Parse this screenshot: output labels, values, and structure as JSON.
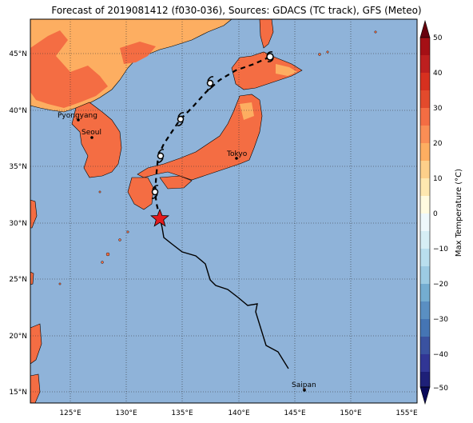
{
  "title": "Forecast of 2019081412 (f030-036), Sources: GDACS (TC track), GFS (Meteo)",
  "colorbar": {
    "label": "Max Temperature (°C)",
    "ticks": [
      "50",
      "40",
      "30",
      "20",
      "10",
      "0",
      "−10",
      "−20",
      "−30",
      "−40",
      "−50"
    ],
    "colors": [
      "#7f0000",
      "#a50f15",
      "#d7301f",
      "#f46d43",
      "#fdae61",
      "#fee090",
      "#ffffbf",
      "#e0f3f8",
      "#abd9e9",
      "#74add1",
      "#4575b4",
      "#313695",
      "#1a1a80",
      "#0a0a5a"
    ]
  },
  "axes": {
    "lon_ticks": [
      "125°E",
      "130°E",
      "135°E",
      "140°E",
      "145°E",
      "150°E",
      "155°E"
    ],
    "lat_ticks": [
      "45°N",
      "40°N",
      "35°N",
      "30°N",
      "25°N",
      "20°N",
      "15°N"
    ]
  },
  "cities": [
    {
      "name": "Pyongyang"
    },
    {
      "name": "Seoul"
    },
    {
      "name": "Tokyo"
    },
    {
      "name": "Saipan"
    }
  ],
  "colors": {
    "ocean": "#8fb3d9",
    "land_hot": "#f46d43",
    "land_warm": "#fdae61",
    "track": "#000000",
    "star": "#e31a1c"
  }
}
